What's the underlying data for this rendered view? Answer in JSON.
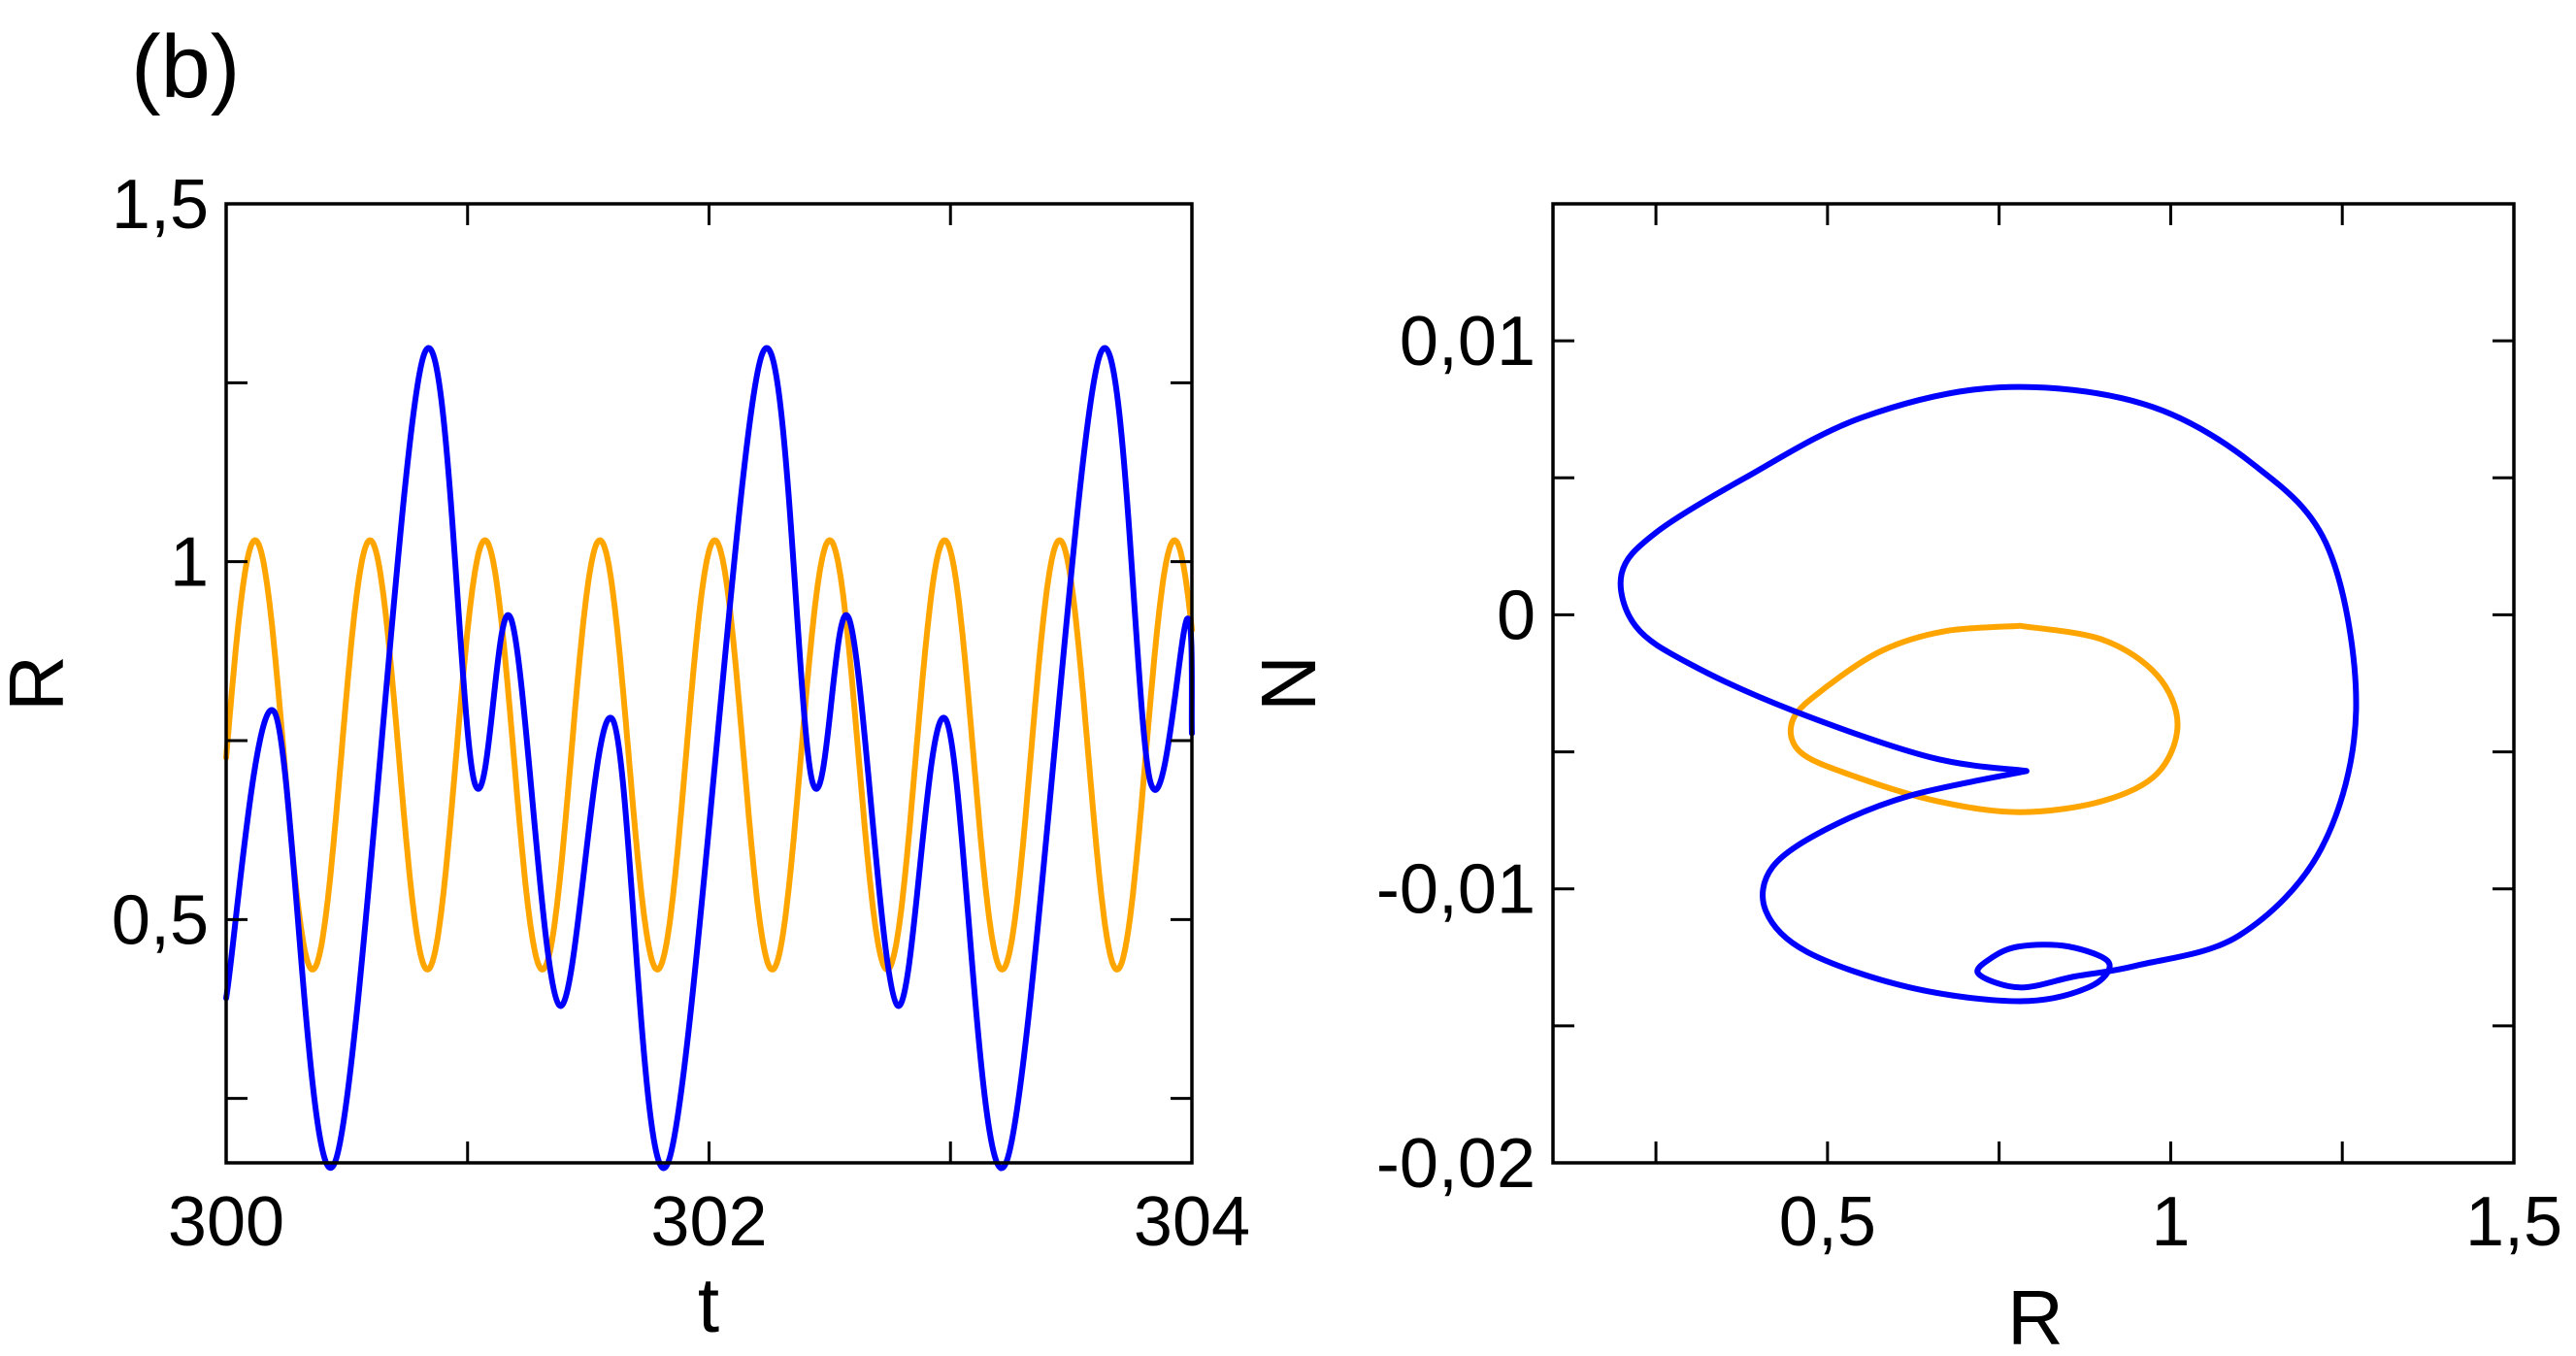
{
  "panel_label": "(b)",
  "colors": {
    "series_a": "#FFA500",
    "series_b": "#0000FF"
  },
  "chart_data": [
    {
      "type": "line",
      "panel": "left",
      "xlabel": "t",
      "ylabel": "R",
      "xlim": [
        300,
        304
      ],
      "ylim": [
        0.16,
        1.5
      ],
      "x_ticks": [
        300,
        302,
        304
      ],
      "x_tick_labels": [
        "300",
        "302",
        "304"
      ],
      "x_minor_ticks": [
        301,
        303
      ],
      "y_ticks": [
        0.5,
        1,
        1.5
      ],
      "y_tick_labels": [
        "0,5",
        "1",
        "1,5"
      ],
      "y_minor_ticks": [
        0.25,
        0.75,
        1.25
      ],
      "grid": false,
      "legend": "none",
      "series": [
        {
          "color": "#FFA500",
          "shape": "sinusoid",
          "min": 0.43,
          "max": 1.03,
          "period": 0.476,
          "phase_peak_t": 300.12
        },
        {
          "color": "#0000FF",
          "shape": "two-frequency oscillation",
          "period": 1.4,
          "points": [
            [
              300.0,
              0.39
            ],
            [
              300.2,
              0.79
            ],
            [
              300.45,
              0.16
            ],
            [
              300.82,
              1.29
            ],
            [
              301.03,
              0.69
            ],
            [
              301.18,
              0.92
            ],
            [
              301.38,
              0.38
            ],
            [
              301.6,
              0.78
            ],
            [
              301.83,
              0.16
            ],
            [
              302.22,
              1.29
            ],
            [
              302.43,
              0.69
            ],
            [
              302.58,
              0.92
            ],
            [
              302.78,
              0.38
            ],
            [
              302.98,
              0.78
            ],
            [
              303.23,
              0.16
            ],
            [
              303.62,
              1.29
            ],
            [
              303.83,
              0.69
            ],
            [
              303.98,
              0.92
            ],
            [
              304.0,
              0.76
            ]
          ]
        }
      ]
    },
    {
      "type": "line",
      "panel": "right",
      "xlabel": "R",
      "ylabel": "N",
      "xlim": [
        0.1,
        1.5
      ],
      "ylim": [
        -0.02,
        0.015
      ],
      "x_ticks": [
        0.5,
        1,
        1.5
      ],
      "x_tick_labels": [
        "0,5",
        "1",
        "1,5"
      ],
      "x_minor_ticks": [
        0.25,
        0.75,
        1.25
      ],
      "y_ticks": [
        -0.02,
        -0.01,
        0,
        0.01
      ],
      "y_tick_labels": [
        "-0,02",
        "-0,01",
        "0",
        "0,01"
      ],
      "y_minor_ticks": [
        -0.015,
        -0.005,
        0.005
      ],
      "grid": false,
      "legend": "none",
      "series": [
        {
          "color": "#FFA500",
          "shape": "closed loop",
          "points": [
            [
              0.78,
              -0.0004
            ],
            [
              0.9,
              -0.0009
            ],
            [
              0.98,
              -0.0022
            ],
            [
              1.01,
              -0.004
            ],
            [
              0.98,
              -0.0058
            ],
            [
              0.9,
              -0.0068
            ],
            [
              0.78,
              -0.0072
            ],
            [
              0.66,
              -0.0068
            ],
            [
              0.54,
              -0.0059
            ],
            [
              0.46,
              -0.005
            ],
            [
              0.45,
              -0.0038
            ],
            [
              0.5,
              -0.0026
            ],
            [
              0.58,
              -0.0013
            ],
            [
              0.67,
              -0.0006
            ],
            [
              0.78,
              -0.0004
            ]
          ]
        },
        {
          "color": "#0000FF",
          "shape": "closed loop",
          "points": [
            [
              0.79,
              -0.0057
            ],
            [
              0.65,
              -0.0052
            ],
            [
              0.45,
              -0.0035
            ],
            [
              0.3,
              -0.0018
            ],
            [
              0.22,
              -0.0004
            ],
            [
              0.2,
              0.0015
            ],
            [
              0.25,
              0.003
            ],
            [
              0.38,
              0.005
            ],
            [
              0.55,
              0.0072
            ],
            [
              0.75,
              0.0083
            ],
            [
              0.96,
              0.0077
            ],
            [
              1.12,
              0.0055
            ],
            [
              1.23,
              0.0024
            ],
            [
              1.27,
              -0.0035
            ],
            [
              1.22,
              -0.0085
            ],
            [
              1.1,
              -0.0117
            ],
            [
              0.95,
              -0.0128
            ],
            [
              0.86,
              -0.0132
            ],
            [
              0.78,
              -0.0136
            ],
            [
              0.72,
              -0.0131
            ],
            [
              0.74,
              -0.0125
            ],
            [
              0.78,
              -0.0121
            ],
            [
              0.85,
              -0.0121
            ],
            [
              0.91,
              -0.0127
            ],
            [
              0.88,
              -0.0136
            ],
            [
              0.78,
              -0.0141
            ],
            [
              0.62,
              -0.0136
            ],
            [
              0.47,
              -0.0123
            ],
            [
              0.41,
              -0.0108
            ],
            [
              0.42,
              -0.0092
            ],
            [
              0.5,
              -0.0078
            ],
            [
              0.62,
              -0.0066
            ],
            [
              0.79,
              -0.0057
            ]
          ]
        }
      ]
    }
  ]
}
